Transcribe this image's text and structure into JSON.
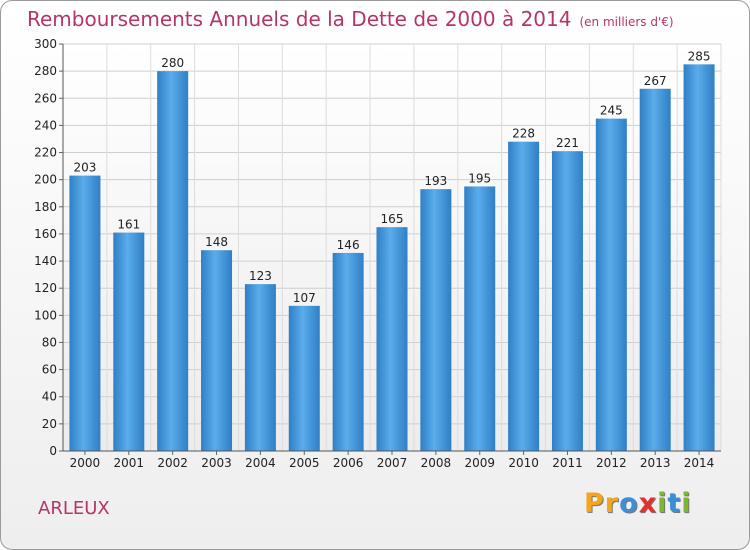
{
  "header": {
    "title": "Remboursements Annuels de la Dette de 2000 à 2014",
    "unit": "(en milliers d'€)"
  },
  "commune": "ARLEUX",
  "brand": {
    "letters": [
      {
        "char": "P",
        "color": "#f4a51c"
      },
      {
        "char": "r",
        "color": "#f4a51c"
      },
      {
        "char": "o",
        "color": "#3a8fd6"
      },
      {
        "char": "x",
        "color": "#e2312d"
      },
      {
        "char": "i",
        "color": "#7cb82f"
      },
      {
        "char": "t",
        "color": "#3a8fd6"
      },
      {
        "char": "i",
        "color": "#7cb82f"
      }
    ]
  },
  "chart_data": {
    "type": "bar",
    "title": "Remboursements Annuels de la Dette de 2000 à 2014",
    "subtitle": "(en milliers d'€)",
    "categories": [
      "2000",
      "2001",
      "2002",
      "2003",
      "2004",
      "2005",
      "2006",
      "2007",
      "2008",
      "2009",
      "2010",
      "2011",
      "2012",
      "2013",
      "2014"
    ],
    "values": [
      203,
      161,
      280,
      148,
      123,
      107,
      146,
      165,
      193,
      195,
      228,
      221,
      245,
      267,
      285
    ],
    "ylim": [
      0,
      300
    ],
    "yticks": [
      0,
      20,
      40,
      60,
      80,
      100,
      120,
      140,
      160,
      180,
      200,
      220,
      240,
      260,
      280,
      300
    ],
    "grid": true,
    "bar_color": "#3d8fd3"
  }
}
